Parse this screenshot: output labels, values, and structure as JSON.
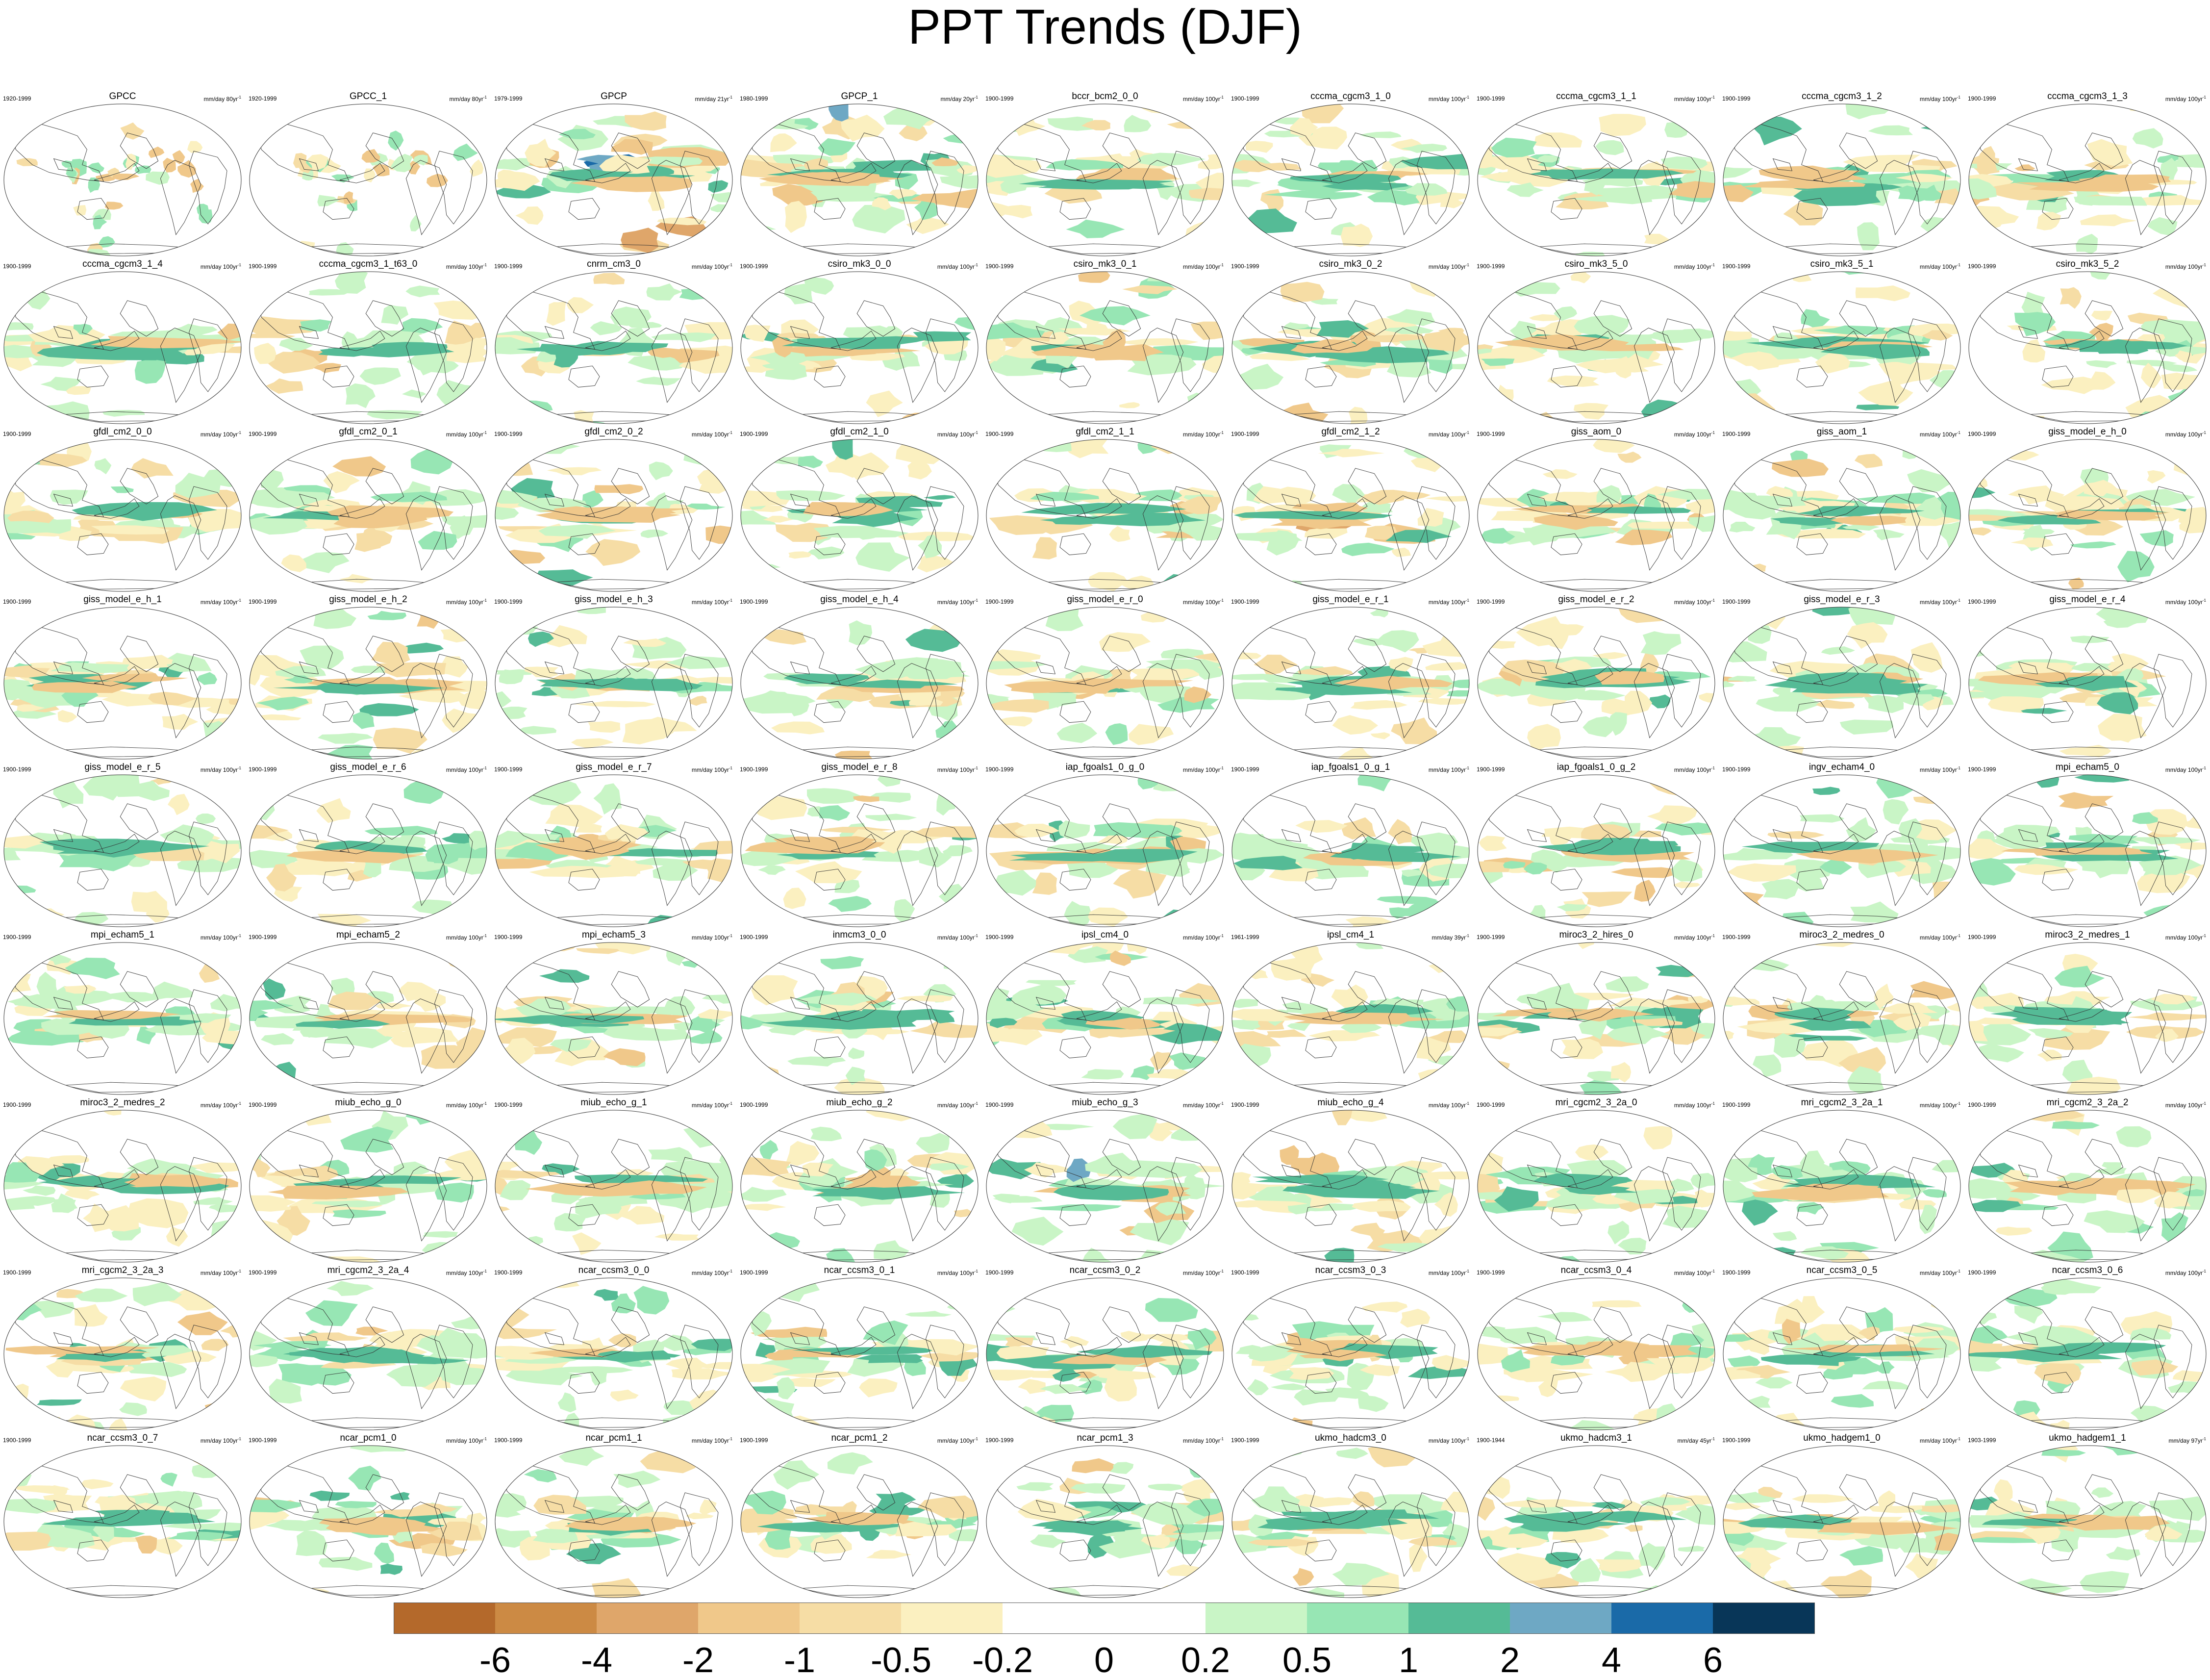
{
  "title": "PPT Trends (DJF)",
  "legend_colors": [
    "#b4692b",
    "#cc8a44",
    "#dfa66a",
    "#f0c88a",
    "#f6dda5",
    "#fbf0c0",
    "#ffffff",
    "#ffffff",
    "#c9f5c6",
    "#97e6b4",
    "#55bb96",
    "#6ea8c4",
    "#1a6aa8",
    "#083658"
  ],
  "legend_labels": [
    "-6",
    "-4",
    "-2",
    "-1",
    "-0.5",
    "-0.2",
    "0",
    "0.2",
    "0.5",
    "1",
    "2",
    "4",
    "6"
  ],
  "panels": [
    {
      "name": "GPCC",
      "period": "1920-1999",
      "units": "mm/day 80yr",
      "units_exp": "-1",
      "land_only": true,
      "seed": 11
    },
    {
      "name": "GPCC_1",
      "period": "1920-1999",
      "units": "mm/day 80yr",
      "units_exp": "-1",
      "land_only": true,
      "seed": 12
    },
    {
      "name": "GPCP",
      "period": "1979-1999",
      "units": "mm/day 21yr",
      "units_exp": "-1",
      "strong": true,
      "seed": 13
    },
    {
      "name": "GPCP_1",
      "period": "1980-1999",
      "units": "mm/day 20yr",
      "units_exp": "-1",
      "strong": true,
      "seed": 14
    },
    {
      "name": "bccr_bcm2_0_0",
      "period": "1900-1999",
      "units": "mm/day 100yr",
      "units_exp": "-1",
      "seed": 15
    },
    {
      "name": "cccma_cgcm3_1_0",
      "period": "1900-1999",
      "units": "mm/day 100yr",
      "units_exp": "-1",
      "seed": 16
    },
    {
      "name": "cccma_cgcm3_1_1",
      "period": "1900-1999",
      "units": "mm/day 100yr",
      "units_exp": "-1",
      "seed": 17
    },
    {
      "name": "cccma_cgcm3_1_2",
      "period": "1900-1999",
      "units": "mm/day 100yr",
      "units_exp": "-1",
      "seed": 18
    },
    {
      "name": "cccma_cgcm3_1_3",
      "period": "1900-1999",
      "units": "mm/day 100yr",
      "units_exp": "-1",
      "seed": 19
    },
    {
      "name": "cccma_cgcm3_1_4",
      "period": "1900-1999",
      "units": "mm/day 100yr",
      "units_exp": "-1",
      "seed": 20
    },
    {
      "name": "cccma_cgcm3_1_t63_0",
      "period": "1900-1999",
      "units": "mm/day 100yr",
      "units_exp": "-1",
      "seed": 21
    },
    {
      "name": "cnrm_cm3_0",
      "period": "1900-1999",
      "units": "mm/day 100yr",
      "units_exp": "-1",
      "seed": 22
    },
    {
      "name": "csiro_mk3_0_0",
      "period": "1900-1999",
      "units": "mm/day 100yr",
      "units_exp": "-1",
      "seed": 23
    },
    {
      "name": "csiro_mk3_0_1",
      "period": "1900-1999",
      "units": "mm/day 100yr",
      "units_exp": "-1",
      "seed": 24
    },
    {
      "name": "csiro_mk3_0_2",
      "period": "1900-1999",
      "units": "mm/day 100yr",
      "units_exp": "-1",
      "seed": 25
    },
    {
      "name": "csiro_mk3_5_0",
      "period": "1900-1999",
      "units": "mm/day 100yr",
      "units_exp": "-1",
      "seed": 26
    },
    {
      "name": "csiro_mk3_5_1",
      "period": "1900-1999",
      "units": "mm/day 100yr",
      "units_exp": "-1",
      "seed": 27
    },
    {
      "name": "csiro_mk3_5_2",
      "period": "1900-1999",
      "units": "mm/day 100yr",
      "units_exp": "-1",
      "seed": 28
    },
    {
      "name": "gfdl_cm2_0_0",
      "period": "1900-1999",
      "units": "mm/day 100yr",
      "units_exp": "-1",
      "seed": 29
    },
    {
      "name": "gfdl_cm2_0_1",
      "period": "1900-1999",
      "units": "mm/day 100yr",
      "units_exp": "-1",
      "seed": 30
    },
    {
      "name": "gfdl_cm2_0_2",
      "period": "1900-1999",
      "units": "mm/day 100yr",
      "units_exp": "-1",
      "seed": 31
    },
    {
      "name": "gfdl_cm2_1_0",
      "period": "1900-1999",
      "units": "mm/day 100yr",
      "units_exp": "-1",
      "seed": 32
    },
    {
      "name": "gfdl_cm2_1_1",
      "period": "1900-1999",
      "units": "mm/day 100yr",
      "units_exp": "-1",
      "seed": 33
    },
    {
      "name": "gfdl_cm2_1_2",
      "period": "1900-1999",
      "units": "mm/day 100yr",
      "units_exp": "-1",
      "seed": 34
    },
    {
      "name": "giss_aom_0",
      "period": "1900-1999",
      "units": "mm/day 100yr",
      "units_exp": "-1",
      "seed": 35
    },
    {
      "name": "giss_aom_1",
      "period": "1900-1999",
      "units": "mm/day 100yr",
      "units_exp": "-1",
      "seed": 36
    },
    {
      "name": "giss_model_e_h_0",
      "period": "1900-1999",
      "units": "mm/day 100yr",
      "units_exp": "-1",
      "seed": 37
    },
    {
      "name": "giss_model_e_h_1",
      "period": "1900-1999",
      "units": "mm/day 100yr",
      "units_exp": "-1",
      "seed": 38
    },
    {
      "name": "giss_model_e_h_2",
      "period": "1900-1999",
      "units": "mm/day 100yr",
      "units_exp": "-1",
      "seed": 39
    },
    {
      "name": "giss_model_e_h_3",
      "period": "1900-1999",
      "units": "mm/day 100yr",
      "units_exp": "-1",
      "seed": 40
    },
    {
      "name": "giss_model_e_h_4",
      "period": "1900-1999",
      "units": "mm/day 100yr",
      "units_exp": "-1",
      "seed": 41
    },
    {
      "name": "giss_model_e_r_0",
      "period": "1900-1999",
      "units": "mm/day 100yr",
      "units_exp": "-1",
      "seed": 42
    },
    {
      "name": "giss_model_e_r_1",
      "period": "1900-1999",
      "units": "mm/day 100yr",
      "units_exp": "-1",
      "seed": 43
    },
    {
      "name": "giss_model_e_r_2",
      "period": "1900-1999",
      "units": "mm/day 100yr",
      "units_exp": "-1",
      "seed": 44
    },
    {
      "name": "giss_model_e_r_3",
      "period": "1900-1999",
      "units": "mm/day 100yr",
      "units_exp": "-1",
      "seed": 45
    },
    {
      "name": "giss_model_e_r_4",
      "period": "1900-1999",
      "units": "mm/day 100yr",
      "units_exp": "-1",
      "seed": 46
    },
    {
      "name": "giss_model_e_r_5",
      "period": "1900-1999",
      "units": "mm/day 100yr",
      "units_exp": "-1",
      "seed": 47
    },
    {
      "name": "giss_model_e_r_6",
      "period": "1900-1999",
      "units": "mm/day 100yr",
      "units_exp": "-1",
      "seed": 48
    },
    {
      "name": "giss_model_e_r_7",
      "period": "1900-1999",
      "units": "mm/day 100yr",
      "units_exp": "-1",
      "seed": 49
    },
    {
      "name": "giss_model_e_r_8",
      "period": "1900-1999",
      "units": "mm/day 100yr",
      "units_exp": "-1",
      "seed": 50
    },
    {
      "name": "iap_fgoals1_0_g_0",
      "period": "1900-1999",
      "units": "mm/day 100yr",
      "units_exp": "-1",
      "seed": 51
    },
    {
      "name": "iap_fgoals1_0_g_1",
      "period": "1900-1999",
      "units": "mm/day 100yr",
      "units_exp": "-1",
      "seed": 52
    },
    {
      "name": "iap_fgoals1_0_g_2",
      "period": "1900-1999",
      "units": "mm/day 100yr",
      "units_exp": "-1",
      "seed": 53
    },
    {
      "name": "ingv_echam4_0",
      "period": "1900-1999",
      "units": "mm/day 100yr",
      "units_exp": "-1",
      "seed": 54
    },
    {
      "name": "mpi_echam5_0",
      "period": "1900-1999",
      "units": "mm/day 100yr",
      "units_exp": "-1",
      "seed": 55
    },
    {
      "name": "mpi_echam5_1",
      "period": "1900-1999",
      "units": "mm/day 100yr",
      "units_exp": "-1",
      "seed": 56
    },
    {
      "name": "mpi_echam5_2",
      "period": "1900-1999",
      "units": "mm/day 100yr",
      "units_exp": "-1",
      "seed": 57
    },
    {
      "name": "mpi_echam5_3",
      "period": "1900-1999",
      "units": "mm/day 100yr",
      "units_exp": "-1",
      "seed": 58
    },
    {
      "name": "inmcm3_0_0",
      "period": "1900-1999",
      "units": "mm/day 100yr",
      "units_exp": "-1",
      "seed": 59
    },
    {
      "name": "ipsl_cm4_0",
      "period": "1900-1999",
      "units": "mm/day 100yr",
      "units_exp": "-1",
      "seed": 60
    },
    {
      "name": "ipsl_cm4_1",
      "period": "1961-1999",
      "units": "mm/day 39yr",
      "units_exp": "-1",
      "seed": 61
    },
    {
      "name": "miroc3_2_hires_0",
      "period": "1900-1999",
      "units": "mm/day 100yr",
      "units_exp": "-1",
      "seed": 62
    },
    {
      "name": "miroc3_2_medres_0",
      "period": "1900-1999",
      "units": "mm/day 100yr",
      "units_exp": "-1",
      "seed": 63
    },
    {
      "name": "miroc3_2_medres_1",
      "period": "1900-1999",
      "units": "mm/day 100yr",
      "units_exp": "-1",
      "seed": 64
    },
    {
      "name": "miroc3_2_medres_2",
      "period": "1900-1999",
      "units": "mm/day 100yr",
      "units_exp": "-1",
      "seed": 65
    },
    {
      "name": "miub_echo_g_0",
      "period": "1900-1999",
      "units": "mm/day 100yr",
      "units_exp": "-1",
      "seed": 66
    },
    {
      "name": "miub_echo_g_1",
      "period": "1900-1999",
      "units": "mm/day 100yr",
      "units_exp": "-1",
      "seed": 67
    },
    {
      "name": "miub_echo_g_2",
      "period": "1900-1999",
      "units": "mm/day 100yr",
      "units_exp": "-1",
      "seed": 68
    },
    {
      "name": "miub_echo_g_3",
      "period": "1900-1999",
      "units": "mm/day 100yr",
      "units_exp": "-1",
      "seed": 69
    },
    {
      "name": "miub_echo_g_4",
      "period": "1900-1999",
      "units": "mm/day 100yr",
      "units_exp": "-1",
      "seed": 70
    },
    {
      "name": "mri_cgcm2_3_2a_0",
      "period": "1900-1999",
      "units": "mm/day 100yr",
      "units_exp": "-1",
      "seed": 71
    },
    {
      "name": "mri_cgcm2_3_2a_1",
      "period": "1900-1999",
      "units": "mm/day 100yr",
      "units_exp": "-1",
      "seed": 72
    },
    {
      "name": "mri_cgcm2_3_2a_2",
      "period": "1900-1999",
      "units": "mm/day 100yr",
      "units_exp": "-1",
      "seed": 73
    },
    {
      "name": "mri_cgcm2_3_2a_3",
      "period": "1900-1999",
      "units": "mm/day 100yr",
      "units_exp": "-1",
      "seed": 74
    },
    {
      "name": "mri_cgcm2_3_2a_4",
      "period": "1900-1999",
      "units": "mm/day 100yr",
      "units_exp": "-1",
      "seed": 75
    },
    {
      "name": "ncar_ccsm3_0_0",
      "period": "1900-1999",
      "units": "mm/day 100yr",
      "units_exp": "-1",
      "seed": 76
    },
    {
      "name": "ncar_ccsm3_0_1",
      "period": "1900-1999",
      "units": "mm/day 100yr",
      "units_exp": "-1",
      "seed": 77
    },
    {
      "name": "ncar_ccsm3_0_2",
      "period": "1900-1999",
      "units": "mm/day 100yr",
      "units_exp": "-1",
      "seed": 78
    },
    {
      "name": "ncar_ccsm3_0_3",
      "period": "1900-1999",
      "units": "mm/day 100yr",
      "units_exp": "-1",
      "seed": 79
    },
    {
      "name": "ncar_ccsm3_0_4",
      "period": "1900-1999",
      "units": "mm/day 100yr",
      "units_exp": "-1",
      "seed": 80
    },
    {
      "name": "ncar_ccsm3_0_5",
      "period": "1900-1999",
      "units": "mm/day 100yr",
      "units_exp": "-1",
      "seed": 81
    },
    {
      "name": "ncar_ccsm3_0_6",
      "period": "1900-1999",
      "units": "mm/day 100yr",
      "units_exp": "-1",
      "seed": 82
    },
    {
      "name": "ncar_ccsm3_0_7",
      "period": "1900-1999",
      "units": "mm/day 100yr",
      "units_exp": "-1",
      "seed": 83
    },
    {
      "name": "ncar_pcm1_0",
      "period": "1900-1999",
      "units": "mm/day 100yr",
      "units_exp": "-1",
      "seed": 84
    },
    {
      "name": "ncar_pcm1_1",
      "period": "1900-1999",
      "units": "mm/day 100yr",
      "units_exp": "-1",
      "seed": 85
    },
    {
      "name": "ncar_pcm1_2",
      "period": "1900-1999",
      "units": "mm/day 100yr",
      "units_exp": "-1",
      "seed": 86
    },
    {
      "name": "ncar_pcm1_3",
      "period": "1900-1999",
      "units": "mm/day 100yr",
      "units_exp": "-1",
      "seed": 87
    },
    {
      "name": "ukmo_hadcm3_0",
      "period": "1900-1999",
      "units": "mm/day 100yr",
      "units_exp": "-1",
      "seed": 88
    },
    {
      "name": "ukmo_hadcm3_1",
      "period": "1900-1944",
      "units": "mm/day 45yr",
      "units_exp": "-1",
      "seed": 89
    },
    {
      "name": "ukmo_hadgem1_0",
      "period": "1900-1999",
      "units": "mm/day 100yr",
      "units_exp": "-1",
      "seed": 90
    },
    {
      "name": "ukmo_hadgem1_1",
      "period": "1903-1999",
      "units": "mm/day 97yr",
      "units_exp": "-1",
      "seed": 91
    }
  ]
}
